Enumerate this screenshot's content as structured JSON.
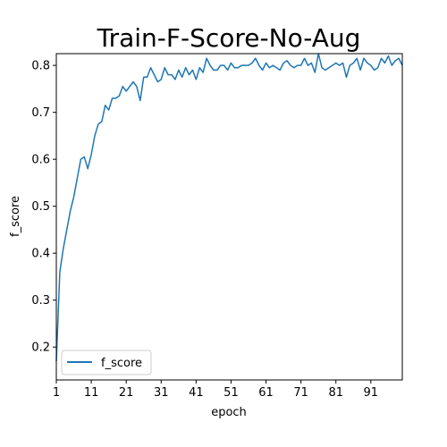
{
  "chart_data": {
    "type": "line",
    "title": "Train-F-Score-No-Aug",
    "xlabel": "epoch",
    "ylabel": "f_score",
    "xlim": [
      1,
      100
    ],
    "ylim": [
      0.13,
      0.825
    ],
    "x_ticks": [
      "1",
      "11",
      "21",
      "31",
      "41",
      "51",
      "61",
      "71",
      "81",
      "91"
    ],
    "y_ticks": [
      "0.2",
      "0.3",
      "0.4",
      "0.5",
      "0.6",
      "0.7",
      "0.8"
    ],
    "grid": false,
    "legend": "lower-left",
    "color": "#1f77b4",
    "series": [
      {
        "name": "f_score",
        "x": [
          1,
          2,
          3,
          4,
          5,
          6,
          7,
          8,
          9,
          10,
          11,
          12,
          13,
          14,
          15,
          16,
          17,
          18,
          19,
          20,
          21,
          22,
          23,
          24,
          25,
          26,
          27,
          28,
          29,
          30,
          31,
          32,
          33,
          34,
          35,
          36,
          37,
          38,
          39,
          40,
          41,
          42,
          43,
          44,
          45,
          46,
          47,
          48,
          49,
          50,
          51,
          52,
          53,
          54,
          55,
          56,
          57,
          58,
          59,
          60,
          61,
          62,
          63,
          64,
          65,
          66,
          67,
          68,
          69,
          70,
          71,
          72,
          73,
          74,
          75,
          76,
          77,
          78,
          79,
          80,
          81,
          82,
          83,
          84,
          85,
          86,
          87,
          88,
          89,
          90,
          91,
          92,
          93,
          94,
          95,
          96,
          97,
          98,
          99,
          100
        ],
        "values": [
          0.17,
          0.36,
          0.41,
          0.45,
          0.49,
          0.52,
          0.56,
          0.6,
          0.605,
          0.58,
          0.61,
          0.65,
          0.675,
          0.68,
          0.715,
          0.705,
          0.73,
          0.73,
          0.735,
          0.755,
          0.745,
          0.755,
          0.765,
          0.755,
          0.725,
          0.775,
          0.775,
          0.795,
          0.78,
          0.765,
          0.77,
          0.795,
          0.78,
          0.78,
          0.77,
          0.79,
          0.775,
          0.795,
          0.78,
          0.79,
          0.77,
          0.795,
          0.785,
          0.815,
          0.8,
          0.79,
          0.79,
          0.8,
          0.8,
          0.79,
          0.805,
          0.795,
          0.795,
          0.8,
          0.8,
          0.8,
          0.805,
          0.815,
          0.8,
          0.79,
          0.805,
          0.795,
          0.8,
          0.795,
          0.79,
          0.805,
          0.81,
          0.8,
          0.795,
          0.8,
          0.8,
          0.815,
          0.8,
          0.805,
          0.785,
          0.825,
          0.795,
          0.79,
          0.795,
          0.8,
          0.805,
          0.8,
          0.805,
          0.775,
          0.8,
          0.805,
          0.815,
          0.79,
          0.815,
          0.805,
          0.8,
          0.79,
          0.795,
          0.815,
          0.805,
          0.82,
          0.8,
          0.81,
          0.815,
          0.8
        ]
      }
    ]
  }
}
